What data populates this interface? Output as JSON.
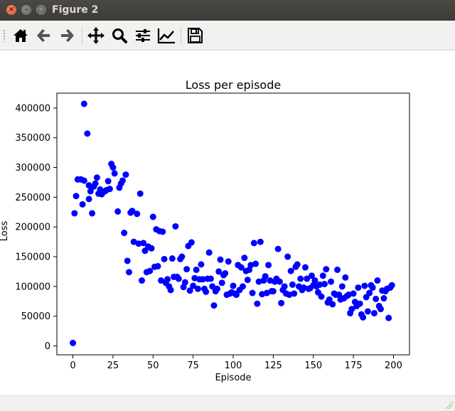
{
  "window": {
    "title": "Figure 2",
    "close_glyph": "×",
    "minimize_glyph": "–",
    "maximize_glyph": "□"
  },
  "toolbar": {
    "buttons": [
      {
        "name": "home-icon",
        "tooltip": "Home"
      },
      {
        "name": "back-arrow-icon",
        "tooltip": "Back"
      },
      {
        "name": "forward-arrow-icon",
        "tooltip": "Forward"
      },
      {
        "name": "pan-icon",
        "tooltip": "Pan"
      },
      {
        "name": "zoom-icon",
        "tooltip": "Zoom"
      },
      {
        "name": "subplots-icon",
        "tooltip": "Subplots"
      },
      {
        "name": "edit-axis-icon",
        "tooltip": "Customize"
      },
      {
        "name": "save-icon",
        "tooltip": "Save"
      }
    ]
  },
  "colors": {
    "titlebar": "#3c3b37",
    "toolbar": "#f2f1f0",
    "marker": "#0000ff",
    "close_button": "#e2512b"
  },
  "chart_data": {
    "type": "scatter",
    "title": "Loss per episode",
    "xlabel": "Episode",
    "ylabel": "Loss",
    "xlim": [
      -10,
      210
    ],
    "ylim": [
      -15000,
      425000
    ],
    "xticks": [
      0,
      25,
      50,
      75,
      100,
      125,
      150,
      175,
      200
    ],
    "yticks": [
      0,
      50000,
      100000,
      150000,
      200000,
      250000,
      300000,
      350000,
      400000
    ],
    "xtick_labels": [
      "0",
      "25",
      "50",
      "75",
      "100",
      "125",
      "150",
      "175",
      "200"
    ],
    "ytick_labels": [
      "0",
      "50000",
      "100000",
      "150000",
      "200000",
      "250000",
      "300000",
      "350000",
      "400000"
    ],
    "grid": false,
    "marker_color": "#0000ff",
    "points": [
      [
        0,
        5000
      ],
      [
        1,
        223000
      ],
      [
        2,
        252000
      ],
      [
        3,
        280000
      ],
      [
        5,
        280000
      ],
      [
        6,
        238000
      ],
      [
        7,
        278000
      ],
      [
        7,
        407000
      ],
      [
        9,
        357000
      ],
      [
        10,
        270000
      ],
      [
        10,
        247000
      ],
      [
        11,
        260000
      ],
      [
        12,
        223000
      ],
      [
        13,
        268000
      ],
      [
        14,
        273000
      ],
      [
        15,
        283000
      ],
      [
        16,
        256000
      ],
      [
        17,
        263000
      ],
      [
        18,
        255000
      ],
      [
        20,
        260000
      ],
      [
        21,
        262000
      ],
      [
        22,
        277000
      ],
      [
        23,
        264000
      ],
      [
        24,
        306000
      ],
      [
        25,
        300000
      ],
      [
        26,
        290000
      ],
      [
        28,
        226000
      ],
      [
        29,
        266000
      ],
      [
        30,
        273000
      ],
      [
        31,
        278000
      ],
      [
        32,
        190000
      ],
      [
        33,
        288000
      ],
      [
        34,
        143000
      ],
      [
        35,
        124000
      ],
      [
        36,
        224000
      ],
      [
        37,
        227000
      ],
      [
        38,
        175000
      ],
      [
        40,
        222000
      ],
      [
        41,
        172000
      ],
      [
        42,
        256000
      ],
      [
        43,
        110000
      ],
      [
        44,
        173000
      ],
      [
        45,
        160000
      ],
      [
        46,
        124000
      ],
      [
        47,
        167000
      ],
      [
        48,
        126000
      ],
      [
        49,
        164000
      ],
      [
        50,
        217000
      ],
      [
        51,
        133000
      ],
      [
        52,
        196000
      ],
      [
        53,
        134000
      ],
      [
        54,
        193000
      ],
      [
        55,
        110000
      ],
      [
        56,
        192000
      ],
      [
        57,
        146000
      ],
      [
        58,
        106000
      ],
      [
        59,
        112000
      ],
      [
        60,
        100000
      ],
      [
        61,
        94000
      ],
      [
        62,
        147000
      ],
      [
        63,
        116000
      ],
      [
        64,
        201000
      ],
      [
        65,
        116000
      ],
      [
        66,
        113000
      ],
      [
        67,
        146000
      ],
      [
        68,
        150000
      ],
      [
        69,
        99000
      ],
      [
        70,
        107000
      ],
      [
        71,
        129000
      ],
      [
        72,
        168000
      ],
      [
        73,
        93000
      ],
      [
        74,
        174000
      ],
      [
        75,
        101000
      ],
      [
        76,
        114000
      ],
      [
        77,
        128000
      ],
      [
        78,
        96000
      ],
      [
        79,
        112000
      ],
      [
        80,
        137000
      ],
      [
        81,
        112000
      ],
      [
        82,
        96000
      ],
      [
        83,
        91000
      ],
      [
        84,
        113000
      ],
      [
        85,
        157000
      ],
      [
        86,
        113000
      ],
      [
        87,
        100000
      ],
      [
        88,
        68000
      ],
      [
        89,
        92000
      ],
      [
        90,
        96000
      ],
      [
        91,
        125000
      ],
      [
        92,
        145000
      ],
      [
        93,
        106000
      ],
      [
        94,
        119000
      ],
      [
        95,
        122000
      ],
      [
        96,
        86000
      ],
      [
        97,
        142000
      ],
      [
        98,
        88000
      ],
      [
        99,
        90000
      ],
      [
        100,
        101000
      ],
      [
        101,
        88000
      ],
      [
        102,
        86000
      ],
      [
        103,
        136000
      ],
      [
        104,
        94000
      ],
      [
        105,
        132000
      ],
      [
        106,
        100000
      ],
      [
        107,
        148000
      ],
      [
        108,
        126000
      ],
      [
        109,
        111000
      ],
      [
        110,
        128000
      ],
      [
        111,
        136000
      ],
      [
        112,
        89000
      ],
      [
        113,
        173000
      ],
      [
        114,
        138000
      ],
      [
        115,
        71000
      ],
      [
        116,
        108000
      ],
      [
        117,
        175000
      ],
      [
        118,
        87000
      ],
      [
        119,
        110000
      ],
      [
        120,
        117000
      ],
      [
        121,
        89000
      ],
      [
        122,
        136000
      ],
      [
        123,
        110000
      ],
      [
        124,
        92000
      ],
      [
        125,
        92000
      ],
      [
        126,
        108000
      ],
      [
        127,
        113000
      ],
      [
        128,
        163000
      ],
      [
        129,
        108000
      ],
      [
        130,
        72000
      ],
      [
        131,
        94000
      ],
      [
        132,
        100000
      ],
      [
        133,
        88000
      ],
      [
        134,
        150000
      ],
      [
        135,
        86000
      ],
      [
        136,
        126000
      ],
      [
        137,
        103000
      ],
      [
        138,
        88000
      ],
      [
        139,
        133000
      ],
      [
        140,
        137000
      ],
      [
        141,
        100000
      ],
      [
        142,
        113000
      ],
      [
        143,
        94000
      ],
      [
        144,
        98000
      ],
      [
        145,
        132000
      ],
      [
        146,
        113000
      ],
      [
        147,
        96000
      ],
      [
        148,
        97000
      ],
      [
        149,
        118000
      ],
      [
        150,
        102000
      ],
      [
        151,
        110000
      ],
      [
        152,
        100000
      ],
      [
        153,
        90000
      ],
      [
        154,
        103000
      ],
      [
        155,
        83000
      ],
      [
        156,
        118000
      ],
      [
        157,
        104000
      ],
      [
        158,
        129000
      ],
      [
        159,
        73000
      ],
      [
        160,
        78000
      ],
      [
        161,
        108000
      ],
      [
        162,
        70000
      ],
      [
        163,
        88000
      ],
      [
        164,
        86000
      ],
      [
        165,
        128000
      ],
      [
        166,
        86000
      ],
      [
        167,
        78000
      ],
      [
        168,
        100000
      ],
      [
        169,
        80000
      ],
      [
        170,
        115000
      ],
      [
        171,
        84000
      ],
      [
        172,
        86000
      ],
      [
        173,
        55000
      ],
      [
        174,
        62000
      ],
      [
        175,
        88000
      ],
      [
        176,
        74000
      ],
      [
        177,
        67000
      ],
      [
        178,
        98000
      ],
      [
        179,
        71000
      ],
      [
        180,
        53000
      ],
      [
        181,
        48000
      ],
      [
        182,
        101000
      ],
      [
        183,
        82000
      ],
      [
        184,
        58000
      ],
      [
        185,
        89000
      ],
      [
        186,
        102000
      ],
      [
        187,
        98000
      ],
      [
        188,
        55000
      ],
      [
        189,
        79000
      ],
      [
        190,
        110000
      ],
      [
        191,
        67000
      ],
      [
        192,
        62000
      ],
      [
        193,
        93000
      ],
      [
        194,
        80000
      ],
      [
        195,
        92000
      ],
      [
        196,
        96000
      ],
      [
        197,
        47000
      ],
      [
        198,
        98000
      ],
      [
        199,
        102000
      ]
    ]
  }
}
